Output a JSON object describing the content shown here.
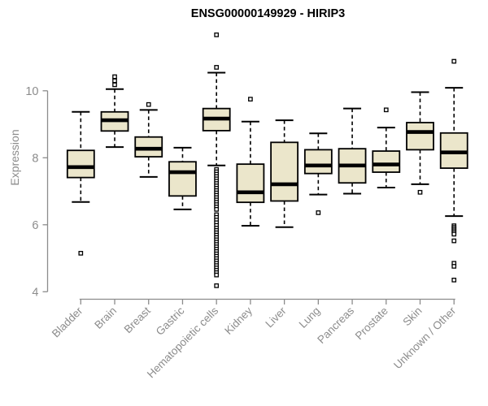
{
  "chart_data": {
    "type": "box",
    "title": "ENSG00000149929 - HIRIP3",
    "ylabel": "Expression",
    "xlabel": "",
    "ylim": [
      4,
      10
    ],
    "yticks": [
      10,
      8,
      6,
      4
    ],
    "grid": false,
    "legend": "none",
    "colors": {
      "box_fill": "#EBE6CB",
      "box_stroke": "#000000",
      "median": "#000000",
      "whisker": "#000000",
      "axis": "#8c8c8c",
      "title": "#000000"
    },
    "categories": [
      "Bladder",
      "Brain",
      "Breast",
      "Gastric",
      "Hematopoietic cells",
      "Kidney",
      "Liver",
      "Lung",
      "Pancreas",
      "Prostate",
      "Skin",
      "Unknown / Other"
    ],
    "series": [
      {
        "name": "Bladder",
        "whisker_low": 6.68,
        "q1": 7.41,
        "median": 7.72,
        "q3": 8.22,
        "whisker_high": 9.37,
        "outliers": [
          5.15
        ]
      },
      {
        "name": "Brain",
        "whisker_low": 8.32,
        "q1": 8.8,
        "median": 9.12,
        "q3": 9.37,
        "whisker_high": 10.05,
        "outliers": [
          10.42,
          10.3,
          10.18
        ]
      },
      {
        "name": "Breast",
        "whisker_low": 7.43,
        "q1": 8.03,
        "median": 8.27,
        "q3": 8.62,
        "whisker_high": 9.43,
        "outliers": [
          9.59
        ]
      },
      {
        "name": "Gastric",
        "whisker_low": 6.46,
        "q1": 6.86,
        "median": 7.57,
        "q3": 7.88,
        "whisker_high": 8.3,
        "outliers": []
      },
      {
        "name": "Hematopoietic cells",
        "whisker_low": 7.77,
        "q1": 8.81,
        "median": 9.17,
        "q3": 9.47,
        "whisker_high": 10.54,
        "outliers": [
          11.67,
          10.7,
          7.65,
          7.58,
          7.51,
          7.44,
          7.37,
          7.3,
          7.23,
          7.16,
          7.09,
          7.02,
          6.95,
          6.88,
          6.81,
          6.74,
          6.67,
          6.6,
          6.53,
          6.46,
          6.3,
          6.22,
          6.14,
          6.06,
          5.98,
          5.9,
          5.83,
          5.76,
          5.69,
          5.62,
          5.55,
          5.48,
          5.41,
          5.34,
          5.27,
          5.2,
          5.13,
          5.06,
          4.99,
          4.92,
          4.85,
          4.78,
          4.71,
          4.64,
          4.57,
          4.5,
          4.18
        ]
      },
      {
        "name": "Kidney",
        "whisker_low": 5.97,
        "q1": 6.67,
        "median": 6.97,
        "q3": 7.81,
        "whisker_high": 9.08,
        "outliers": [
          9.75
        ]
      },
      {
        "name": "Liver",
        "whisker_low": 5.93,
        "q1": 6.71,
        "median": 7.21,
        "q3": 8.46,
        "whisker_high": 9.12,
        "outliers": []
      },
      {
        "name": "Lung",
        "whisker_low": 6.9,
        "q1": 7.53,
        "median": 7.77,
        "q3": 8.24,
        "whisker_high": 8.73,
        "outliers": [
          6.36
        ]
      },
      {
        "name": "Pancreas",
        "whisker_low": 6.93,
        "q1": 7.25,
        "median": 7.77,
        "q3": 8.27,
        "whisker_high": 9.47,
        "outliers": []
      },
      {
        "name": "Prostate",
        "whisker_low": 7.11,
        "q1": 7.57,
        "median": 7.8,
        "q3": 8.2,
        "whisker_high": 8.9,
        "outliers": [
          9.43
        ]
      },
      {
        "name": "Skin",
        "whisker_low": 7.21,
        "q1": 8.24,
        "median": 8.77,
        "q3": 9.05,
        "whisker_high": 9.96,
        "outliers": [
          6.97
        ]
      },
      {
        "name": "Unknown / Other",
        "whisker_low": 6.26,
        "q1": 7.69,
        "median": 8.16,
        "q3": 8.74,
        "whisker_high": 10.09,
        "outliers": [
          10.88,
          5.97,
          5.92,
          5.87,
          5.82,
          5.77,
          5.72,
          5.52,
          4.85,
          4.76,
          4.35
        ]
      }
    ]
  }
}
